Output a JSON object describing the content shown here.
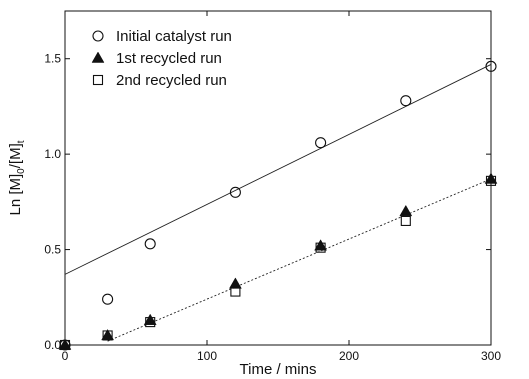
{
  "chart_data": {
    "type": "scatter",
    "title": "",
    "xlabel": "Time / mins",
    "ylabel": {
      "prefix": "Ln [M]",
      "sub1": "0",
      "mid": "/[M]",
      "sub2": "t"
    },
    "xlim": [
      0,
      300
    ],
    "ylim": [
      0,
      1.75
    ],
    "x_ticks": [
      0,
      100,
      200,
      300
    ],
    "x_tick_labels": [
      "0",
      "100",
      "200",
      "300"
    ],
    "y_ticks": [
      0,
      0.5,
      1.0,
      1.5
    ],
    "y_tick_labels": [
      "0.0",
      "0.5",
      "1.0",
      "1.5"
    ],
    "grid": false,
    "legend_position": "top-left",
    "series": [
      {
        "name": "Initial catalyst run",
        "marker": "open-circle",
        "x": [
          0,
          30,
          60,
          120,
          180,
          240,
          300
        ],
        "y": [
          0,
          0.24,
          0.53,
          0.8,
          1.06,
          1.28,
          1.46
        ]
      },
      {
        "name": "1st recycled run",
        "marker": "filled-triangle",
        "x": [
          0,
          30,
          60,
          120,
          180,
          240,
          300
        ],
        "y": [
          0,
          0.05,
          0.13,
          0.32,
          0.52,
          0.7,
          0.87
        ]
      },
      {
        "name": "2nd recycled run",
        "marker": "open-square",
        "x": [
          0,
          30,
          60,
          120,
          180,
          240,
          300
        ],
        "y": [
          0,
          0.05,
          0.12,
          0.28,
          0.51,
          0.65,
          0.86
        ]
      }
    ],
    "fit_lines": [
      {
        "style": "solid",
        "x": [
          0,
          300
        ],
        "y": [
          0.37,
          1.47
        ]
      },
      {
        "style": "dotted",
        "x": [
          30,
          300
        ],
        "y": [
          0.02,
          0.87
        ]
      }
    ],
    "colors": {
      "marker": "#111111",
      "line": "#222222"
    }
  }
}
